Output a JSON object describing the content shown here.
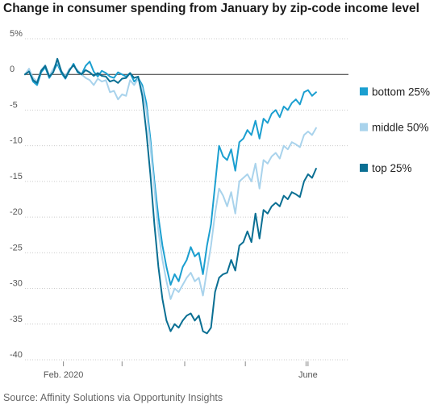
{
  "title": "Change in consumer spending from January by zip-code income level",
  "source": "Source: Affinity Solutions via Opportunity Insights",
  "chart_data": {
    "type": "line",
    "title": "Change in consumer spending from January by zip-code income level",
    "xlabel": "",
    "ylabel": "",
    "ylim": [
      -40,
      5
    ],
    "yticks": [
      5,
      0,
      -5,
      -10,
      -15,
      -20,
      -25,
      -30,
      -35,
      -40
    ],
    "ytick_labels": [
      "5%",
      "0",
      "-5",
      "-10",
      "-15",
      "-20",
      "-25",
      "-30",
      "-35",
      "-40"
    ],
    "x_start": "2020-01-13",
    "x_end": "2020-06-21",
    "x_ticks": [
      {
        "date": "2020-02-01",
        "label": "Feb. 2020"
      },
      {
        "date": "2020-03-01",
        "label": ""
      },
      {
        "date": "2020-04-01",
        "label": ""
      },
      {
        "date": "2020-05-01",
        "label": ""
      },
      {
        "date": "2020-05-31",
        "label": ""
      },
      {
        "date": "2020-06-01",
        "label": "June"
      }
    ],
    "grid": true,
    "legend_position": "right",
    "series": [
      {
        "name": "bottom 25%",
        "color": "#1b9fd0",
        "points": [
          [
            "2020-01-13",
            0.0
          ],
          [
            "2020-01-15",
            0.5
          ],
          [
            "2020-01-17",
            -1.0
          ],
          [
            "2020-01-19",
            -1.5
          ],
          [
            "2020-01-21",
            0.3
          ],
          [
            "2020-01-23",
            1.0
          ],
          [
            "2020-01-25",
            -0.5
          ],
          [
            "2020-01-27",
            0.4
          ],
          [
            "2020-01-29",
            1.5
          ],
          [
            "2020-01-31",
            0.2
          ],
          [
            "2020-02-02",
            -0.6
          ],
          [
            "2020-02-04",
            0.5
          ],
          [
            "2020-02-06",
            1.5
          ],
          [
            "2020-02-08",
            0.3
          ],
          [
            "2020-02-10",
            0.0
          ],
          [
            "2020-02-12",
            1.2
          ],
          [
            "2020-02-14",
            1.8
          ],
          [
            "2020-02-16",
            0.4
          ],
          [
            "2020-02-18",
            -0.3
          ],
          [
            "2020-02-20",
            0.5
          ],
          [
            "2020-02-22",
            0.2
          ],
          [
            "2020-02-24",
            -0.3
          ],
          [
            "2020-02-26",
            -0.5
          ],
          [
            "2020-02-28",
            0.3
          ],
          [
            "2020-03-01",
            0.0
          ],
          [
            "2020-03-03",
            -0.3
          ],
          [
            "2020-03-05",
            0.2
          ],
          [
            "2020-03-07",
            -1.0
          ],
          [
            "2020-03-09",
            -0.5
          ],
          [
            "2020-03-11",
            -1.5
          ],
          [
            "2020-03-13",
            -4.0
          ],
          [
            "2020-03-15",
            -9.0
          ],
          [
            "2020-03-17",
            -15.0
          ],
          [
            "2020-03-19",
            -20.0
          ],
          [
            "2020-03-21",
            -24.0
          ],
          [
            "2020-03-23",
            -27.0
          ],
          [
            "2020-03-25",
            -29.5
          ],
          [
            "2020-03-27",
            -28.0
          ],
          [
            "2020-03-29",
            -29.0
          ],
          [
            "2020-03-31",
            -27.0
          ],
          [
            "2020-04-02",
            -26.0
          ],
          [
            "2020-04-04",
            -24.2
          ],
          [
            "2020-04-06",
            -25.5
          ],
          [
            "2020-04-08",
            -25.0
          ],
          [
            "2020-04-10",
            -28.0
          ],
          [
            "2020-04-12",
            -24.0
          ],
          [
            "2020-04-14",
            -21.0
          ],
          [
            "2020-04-16",
            -15.5
          ],
          [
            "2020-04-18",
            -10.0
          ],
          [
            "2020-04-20",
            -11.5
          ],
          [
            "2020-04-22",
            -12.0
          ],
          [
            "2020-04-24",
            -10.5
          ],
          [
            "2020-04-26",
            -13.5
          ],
          [
            "2020-04-28",
            -9.5
          ],
          [
            "2020-04-30",
            -9.0
          ],
          [
            "2020-05-02",
            -7.8
          ],
          [
            "2020-05-04",
            -8.5
          ],
          [
            "2020-05-06",
            -6.5
          ],
          [
            "2020-05-08",
            -9.0
          ],
          [
            "2020-05-10",
            -6.2
          ],
          [
            "2020-05-12",
            -6.8
          ],
          [
            "2020-05-14",
            -5.5
          ],
          [
            "2020-05-16",
            -5.0
          ],
          [
            "2020-05-18",
            -6.0
          ],
          [
            "2020-05-20",
            -4.5
          ],
          [
            "2020-05-22",
            -5.0
          ],
          [
            "2020-05-24",
            -4.0
          ],
          [
            "2020-05-26",
            -3.5
          ],
          [
            "2020-05-28",
            -4.2
          ],
          [
            "2020-05-30",
            -2.5
          ],
          [
            "2020-06-01",
            -2.2
          ],
          [
            "2020-06-03",
            -3.0
          ],
          [
            "2020-06-05",
            -2.5
          ]
        ]
      },
      {
        "name": "middle 50%",
        "color": "#a9d3ec",
        "points": [
          [
            "2020-01-13",
            0.0
          ],
          [
            "2020-01-15",
            0.8
          ],
          [
            "2020-01-17",
            -0.5
          ],
          [
            "2020-01-19",
            -1.0
          ],
          [
            "2020-01-21",
            0.6
          ],
          [
            "2020-01-23",
            1.3
          ],
          [
            "2020-01-25",
            -0.2
          ],
          [
            "2020-01-27",
            0.8
          ],
          [
            "2020-01-29",
            1.8
          ],
          [
            "2020-01-31",
            0.5
          ],
          [
            "2020-02-02",
            -0.3
          ],
          [
            "2020-02-04",
            0.8
          ],
          [
            "2020-02-06",
            1.2
          ],
          [
            "2020-02-08",
            0.6
          ],
          [
            "2020-02-10",
            0.0
          ],
          [
            "2020-02-12",
            -0.5
          ],
          [
            "2020-02-14",
            -0.8
          ],
          [
            "2020-02-16",
            -1.5
          ],
          [
            "2020-02-18",
            -0.6
          ],
          [
            "2020-02-20",
            -1.0
          ],
          [
            "2020-02-22",
            -0.8
          ],
          [
            "2020-02-24",
            -2.5
          ],
          [
            "2020-02-26",
            -2.3
          ],
          [
            "2020-02-28",
            -3.5
          ],
          [
            "2020-03-01",
            -2.8
          ],
          [
            "2020-03-03",
            -3.0
          ],
          [
            "2020-03-05",
            -0.8
          ],
          [
            "2020-03-07",
            -1.5
          ],
          [
            "2020-03-09",
            -0.6
          ],
          [
            "2020-03-11",
            -2.0
          ],
          [
            "2020-03-13",
            -5.0
          ],
          [
            "2020-03-15",
            -10.0
          ],
          [
            "2020-03-17",
            -16.0
          ],
          [
            "2020-03-19",
            -22.0
          ],
          [
            "2020-03-21",
            -26.0
          ],
          [
            "2020-03-23",
            -29.0
          ],
          [
            "2020-03-25",
            -31.5
          ],
          [
            "2020-03-27",
            -30.0
          ],
          [
            "2020-03-29",
            -30.5
          ],
          [
            "2020-03-31",
            -29.5
          ],
          [
            "2020-04-02",
            -28.5
          ],
          [
            "2020-04-04",
            -27.8
          ],
          [
            "2020-04-06",
            -29.0
          ],
          [
            "2020-04-08",
            -28.5
          ],
          [
            "2020-04-10",
            -31.0
          ],
          [
            "2020-04-12",
            -27.5
          ],
          [
            "2020-04-14",
            -24.0
          ],
          [
            "2020-04-16",
            -19.5
          ],
          [
            "2020-04-18",
            -16.0
          ],
          [
            "2020-04-20",
            -17.0
          ],
          [
            "2020-04-22",
            -18.5
          ],
          [
            "2020-04-24",
            -16.5
          ],
          [
            "2020-04-26",
            -19.5
          ],
          [
            "2020-04-28",
            -15.0
          ],
          [
            "2020-04-30",
            -14.5
          ],
          [
            "2020-05-02",
            -14.0
          ],
          [
            "2020-05-04",
            -15.0
          ],
          [
            "2020-05-06",
            -12.5
          ],
          [
            "2020-05-08",
            -16.0
          ],
          [
            "2020-05-10",
            -12.0
          ],
          [
            "2020-05-12",
            -12.5
          ],
          [
            "2020-05-14",
            -11.5
          ],
          [
            "2020-05-16",
            -11.0
          ],
          [
            "2020-05-18",
            -11.8
          ],
          [
            "2020-05-20",
            -10.0
          ],
          [
            "2020-05-22",
            -10.5
          ],
          [
            "2020-05-24",
            -9.5
          ],
          [
            "2020-05-26",
            -9.8
          ],
          [
            "2020-05-28",
            -10.2
          ],
          [
            "2020-05-30",
            -8.5
          ],
          [
            "2020-06-01",
            -8.0
          ],
          [
            "2020-06-03",
            -8.5
          ],
          [
            "2020-06-05",
            -7.5
          ]
        ]
      },
      {
        "name": "top 25%",
        "color": "#0a6f93",
        "points": [
          [
            "2020-01-13",
            0.0
          ],
          [
            "2020-01-15",
            0.4
          ],
          [
            "2020-01-17",
            -0.8
          ],
          [
            "2020-01-19",
            -1.2
          ],
          [
            "2020-01-21",
            0.5
          ],
          [
            "2020-01-23",
            1.2
          ],
          [
            "2020-01-25",
            -0.3
          ],
          [
            "2020-01-27",
            0.3
          ],
          [
            "2020-01-29",
            2.2
          ],
          [
            "2020-01-31",
            0.4
          ],
          [
            "2020-02-02",
            -0.5
          ],
          [
            "2020-02-04",
            0.6
          ],
          [
            "2020-02-06",
            1.3
          ],
          [
            "2020-02-08",
            0.4
          ],
          [
            "2020-02-10",
            0.0
          ],
          [
            "2020-02-12",
            0.6
          ],
          [
            "2020-02-14",
            0.3
          ],
          [
            "2020-02-16",
            -0.2
          ],
          [
            "2020-02-18",
            0.2
          ],
          [
            "2020-02-20",
            -0.2
          ],
          [
            "2020-02-22",
            -0.3
          ],
          [
            "2020-02-24",
            -1.0
          ],
          [
            "2020-02-26",
            -0.8
          ],
          [
            "2020-02-28",
            -1.2
          ],
          [
            "2020-03-01",
            -0.6
          ],
          [
            "2020-03-03",
            -0.5
          ],
          [
            "2020-03-05",
            0.2
          ],
          [
            "2020-03-07",
            -0.5
          ],
          [
            "2020-03-09",
            -0.3
          ],
          [
            "2020-03-11",
            -3.0
          ],
          [
            "2020-03-13",
            -8.0
          ],
          [
            "2020-03-15",
            -14.0
          ],
          [
            "2020-03-17",
            -21.0
          ],
          [
            "2020-03-19",
            -27.0
          ],
          [
            "2020-03-21",
            -31.5
          ],
          [
            "2020-03-23",
            -34.5
          ],
          [
            "2020-03-25",
            -36.0
          ],
          [
            "2020-03-27",
            -35.0
          ],
          [
            "2020-03-29",
            -35.5
          ],
          [
            "2020-03-31",
            -34.5
          ],
          [
            "2020-04-02",
            -33.8
          ],
          [
            "2020-04-04",
            -33.5
          ],
          [
            "2020-04-06",
            -34.5
          ],
          [
            "2020-04-08",
            -33.8
          ],
          [
            "2020-04-10",
            -36.0
          ],
          [
            "2020-04-12",
            -36.3
          ],
          [
            "2020-04-14",
            -35.5
          ],
          [
            "2020-04-16",
            -30.5
          ],
          [
            "2020-04-18",
            -28.5
          ],
          [
            "2020-04-20",
            -28.0
          ],
          [
            "2020-04-22",
            -27.8
          ],
          [
            "2020-04-24",
            -26.0
          ],
          [
            "2020-04-26",
            -27.5
          ],
          [
            "2020-04-28",
            -24.0
          ],
          [
            "2020-04-30",
            -23.5
          ],
          [
            "2020-05-02",
            -22.0
          ],
          [
            "2020-05-04",
            -23.5
          ],
          [
            "2020-05-06",
            -19.5
          ],
          [
            "2020-05-08",
            -23.0
          ],
          [
            "2020-05-10",
            -19.0
          ],
          [
            "2020-05-12",
            -19.5
          ],
          [
            "2020-05-14",
            -18.5
          ],
          [
            "2020-05-16",
            -18.0
          ],
          [
            "2020-05-18",
            -18.5
          ],
          [
            "2020-05-20",
            -17.0
          ],
          [
            "2020-05-22",
            -17.5
          ],
          [
            "2020-05-24",
            -16.5
          ],
          [
            "2020-05-26",
            -16.8
          ],
          [
            "2020-05-28",
            -17.2
          ],
          [
            "2020-05-30",
            -15.0
          ],
          [
            "2020-06-01",
            -14.0
          ],
          [
            "2020-06-03",
            -14.5
          ],
          [
            "2020-06-05",
            -13.2
          ]
        ]
      }
    ]
  }
}
